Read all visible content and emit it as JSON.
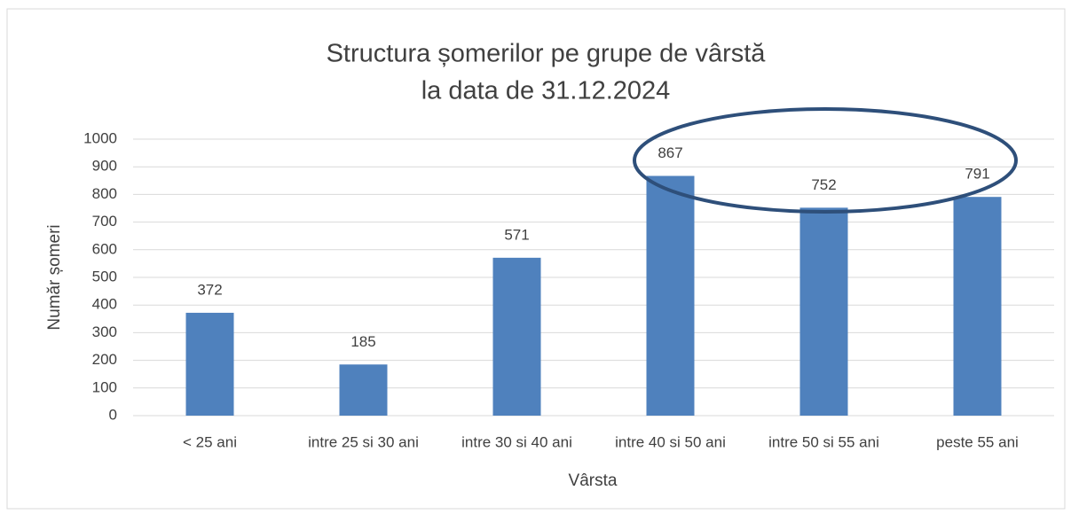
{
  "chart_data": {
    "type": "bar",
    "title": [
      "Structura șomerilor pe grupe de vârstă",
      "la data de 31.12.2024"
    ],
    "x_label": "Vârsta",
    "y_label": "Număr șomeri",
    "categories": [
      "< 25 ani",
      "intre 25 si 30 ani",
      "intre 30 si 40 ani",
      "intre 40 si 50 ani",
      "intre 50 si 55 ani",
      "peste 55 ani"
    ],
    "values": [
      372,
      185,
      571,
      867,
      752,
      791
    ],
    "color": "#4f81bd",
    "ylim": [
      0,
      1000
    ],
    "yticks": [
      0,
      100,
      200,
      300,
      400,
      500,
      600,
      700,
      800,
      900,
      1000
    ],
    "grid": true
  }
}
